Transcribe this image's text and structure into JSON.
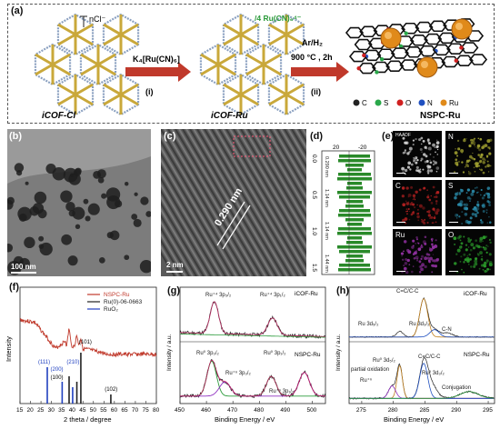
{
  "figure": {
    "labels": [
      "(a)",
      "(b)",
      "(c)",
      "(d)",
      "(e)",
      "(f)",
      "(g)",
      "(h)"
    ]
  },
  "scheme": {
    "counterion": "nCl⁻",
    "ru_counterion": "/4 Ru(CN)₆⁴⁻",
    "step1_reagent": "K₄[Ru(CN)₆]",
    "step1_label": "(i)",
    "step2_gas": "Ar/H₂",
    "step2_cond": "900 °C , 2h",
    "step2_label": "(ii)",
    "product1": "iCOF-Cl",
    "product2": "iCOF-Ru",
    "product3": "NSPC-Ru",
    "legend": [
      {
        "symbol": "C",
        "color": "#222222"
      },
      {
        "symbol": "S",
        "color": "#2aa84a"
      },
      {
        "symbol": "O",
        "color": "#d02020"
      },
      {
        "symbol": "N",
        "color": "#2050c0"
      },
      {
        "symbol": "Ru",
        "color": "#e08a1a"
      }
    ],
    "colors": {
      "framework": "#c9a83a",
      "node": "#8aa0c0",
      "arrow": "#c0392b"
    }
  },
  "tem": {
    "scale_b": "100 nm",
    "scale_c": "2 nm",
    "lattice": "0.290 nm"
  },
  "profile_d": {
    "ylabel_top": [
      "0.0",
      "0.5",
      "1.0",
      "1.5"
    ],
    "xticks": [
      "20",
      "-20"
    ],
    "d_label_top": "0.290 nm",
    "spacings": [
      "1.14 nm",
      "1.14 nm",
      "1.44 nm"
    ],
    "color": "#2a8a2a"
  },
  "eds": {
    "maps": [
      {
        "label": "HAADF",
        "color": "#d0d0d0"
      },
      {
        "label": "N",
        "color": "#a0a030"
      },
      {
        "label": "C",
        "color": "#b02020"
      },
      {
        "label": "S",
        "color": "#2a8aa8"
      },
      {
        "label": "Ru",
        "color": "#9030a0"
      },
      {
        "label": "O",
        "color": "#2a9a2a"
      }
    ]
  },
  "xrd": {
    "legend": [
      "NSPC-Ru",
      "Ru(0)-06-0663",
      "RuO₂"
    ],
    "xlabel": "2 theta / degree",
    "ylabel": "Intensity",
    "xticks": [
      "15",
      "20",
      "25",
      "30",
      "35",
      "40",
      "45",
      "50",
      "55",
      "60",
      "65",
      "70",
      "75",
      "80"
    ],
    "peaks": [
      "(111)",
      "(200)",
      "(100)",
      "(210)",
      "(101)",
      "(102)"
    ],
    "colors": {
      "nspc": "#c0392b",
      "ru": "#222222",
      "ruo2": "#2040c0"
    }
  },
  "xps_ru": {
    "top_label": "iCOF-Ru",
    "bottom_label": "NSPC-Ru",
    "annotations": [
      "Ru⁺⁴ 3p₃/₂",
      "Ru⁺⁴ 3p₁/₂",
      "Ru⁰ 3p₃/₂",
      "Ru⁰ 3p₁/₂",
      "Ru⁺ⁿ 3p₃/₂",
      "Ru⁺ⁿ 3p₁/₂"
    ],
    "xlabel": "Binding Energy / eV",
    "ylabel": "Intensity / a.u.",
    "xticks": [
      "450",
      "460",
      "470",
      "480",
      "490",
      "500"
    ]
  },
  "xps_c": {
    "top_label": "iCOF-Ru",
    "bottom_label": "NSPC-Ru",
    "annotations": [
      "C=C/C-C",
      "Ru 3d₅/₂",
      "Ru 3d₃/₂",
      "C-N",
      "partial oxidation",
      "Ru⁺ⁿ",
      "Ru⁰ 3d₅/₂",
      "C=C/C-C",
      "Ru⁰ 3d₃/₂",
      "Conjugation"
    ],
    "xlabel": "Binding Energy / eV",
    "ylabel": "Intensity / a.u.",
    "xticks": [
      "275",
      "280",
      "285",
      "290",
      "295"
    ]
  }
}
